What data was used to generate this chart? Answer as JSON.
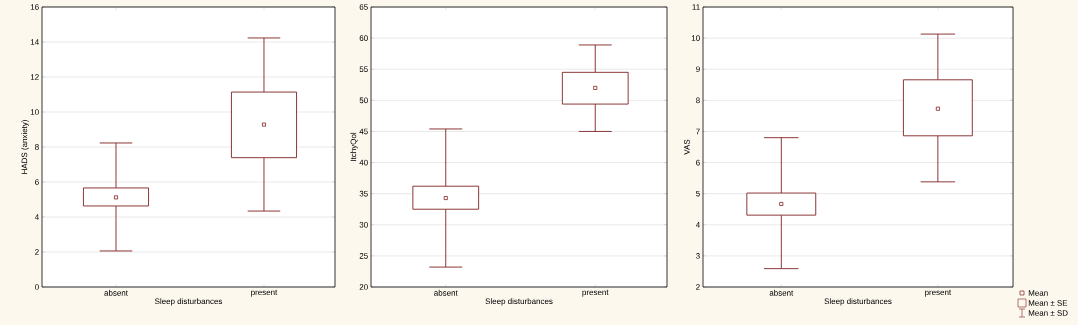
{
  "chart_data": [
    {
      "type": "box",
      "categories": [
        "absent",
        "present"
      ],
      "xlabel": "Sleep disturbances",
      "ylabel": "HADS (anxiety)",
      "ylim": [
        0,
        16
      ],
      "yticks": [
        0,
        2,
        4,
        6,
        8,
        10,
        12,
        14,
        16
      ],
      "grid": "y",
      "color": "#7f2020",
      "boxes": [
        {
          "low": 2.06,
          "q1": 4.63,
          "median": 5.12,
          "q3": 5.66,
          "high": 8.23
        },
        {
          "low": 4.34,
          "q1": 7.39,
          "median": 9.28,
          "q3": 11.14,
          "high": 14.23
        }
      ]
    },
    {
      "type": "box",
      "categories": [
        "absent",
        "present"
      ],
      "xlabel": "Sleep disturbances",
      "ylabel": "ItchyQol",
      "ylim": [
        20,
        65
      ],
      "yticks": [
        20,
        25,
        30,
        35,
        40,
        45,
        50,
        55,
        60,
        65
      ],
      "grid": "y",
      "color": "#7f2020",
      "boxes": [
        {
          "low": 23.2,
          "q1": 32.5,
          "median": 34.3,
          "q3": 36.2,
          "high": 45.4
        },
        {
          "low": 45.0,
          "q1": 49.4,
          "median": 52.0,
          "q3": 54.5,
          "high": 58.9
        }
      ]
    },
    {
      "type": "box",
      "categories": [
        "absent",
        "present"
      ],
      "xlabel": "Sleep disturbances",
      "ylabel": "VAS",
      "ylim": [
        2,
        11
      ],
      "yticks": [
        2,
        3,
        4,
        5,
        6,
        7,
        8,
        9,
        10,
        11
      ],
      "grid": "y",
      "color": "#7f2020",
      "boxes": [
        {
          "low": 2.59,
          "q1": 4.31,
          "median": 4.67,
          "q3": 5.02,
          "high": 6.8
        },
        {
          "low": 5.38,
          "q1": 6.86,
          "median": 7.73,
          "q3": 8.66,
          "high": 10.13
        }
      ],
      "annotations": [
        "Mean",
        "Mean ± SE",
        "Mean ± SD"
      ]
    }
  ]
}
